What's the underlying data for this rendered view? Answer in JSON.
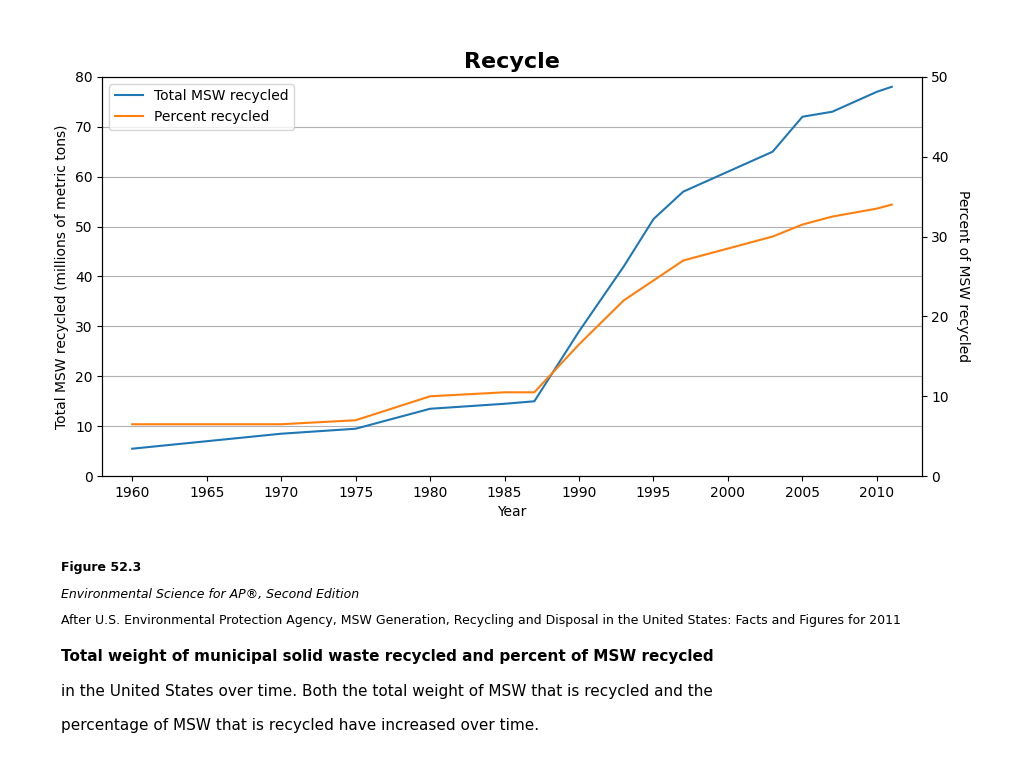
{
  "chart_data": {
    "type": "line",
    "title": "Recycle",
    "x_label": "Year",
    "y_label": "Total MSW recycled (millions of metric tons)",
    "y2_label": "Percent of MSW recycled",
    "x": [
      1960,
      1965,
      1970,
      1975,
      1980,
      1985,
      1987,
      1990,
      1993,
      1995,
      1997,
      2000,
      2003,
      2005,
      2007,
      2010,
      2011
    ],
    "series": [
      {
        "name": "Total MSW recycled",
        "values": [
          5.5,
          7.0,
          8.5,
          9.5,
          13.5,
          14.5,
          15.0,
          29.0,
          42.0,
          51.5,
          57.0,
          61.0,
          65.0,
          72.0,
          73.0,
          77.0,
          78.0
        ]
      },
      {
        "name": "Percent recycled",
        "axis": "y2",
        "values": [
          6.5,
          6.5,
          6.5,
          7.0,
          10.0,
          10.5,
          10.5,
          16.5,
          22.0,
          24.5,
          27.0,
          28.5,
          30.0,
          31.5,
          32.5,
          33.5,
          34.0
        ]
      }
    ],
    "xlim": [
      1958,
      2013
    ],
    "xticks": [
      1960,
      1965,
      1970,
      1975,
      1980,
      1985,
      1990,
      1995,
      2000,
      2005,
      2010
    ],
    "ylim": [
      0,
      80
    ],
    "yticks": [
      0,
      10,
      20,
      30,
      40,
      50,
      60,
      70,
      80
    ],
    "y2lim": [
      0,
      50
    ],
    "y2ticks": [
      0,
      10,
      20,
      30,
      40,
      50
    ],
    "grid": true,
    "legend": "upper left",
    "annotations": [
      "Figure 52.3",
      "Environmental Science for AP®, Second Edition",
      "After U.S. Environmental Protection Agency, MSW Generation, Recycling and Disposal in the United States: Facts and Figures for 2011",
      "Total weight of municipal solid waste recycled and percent of MSW recycled",
      "in the United States over time. Both the total weight of MSW that is recycled and the",
      "percentage of MSW that is recycled have increased over time."
    ]
  }
}
